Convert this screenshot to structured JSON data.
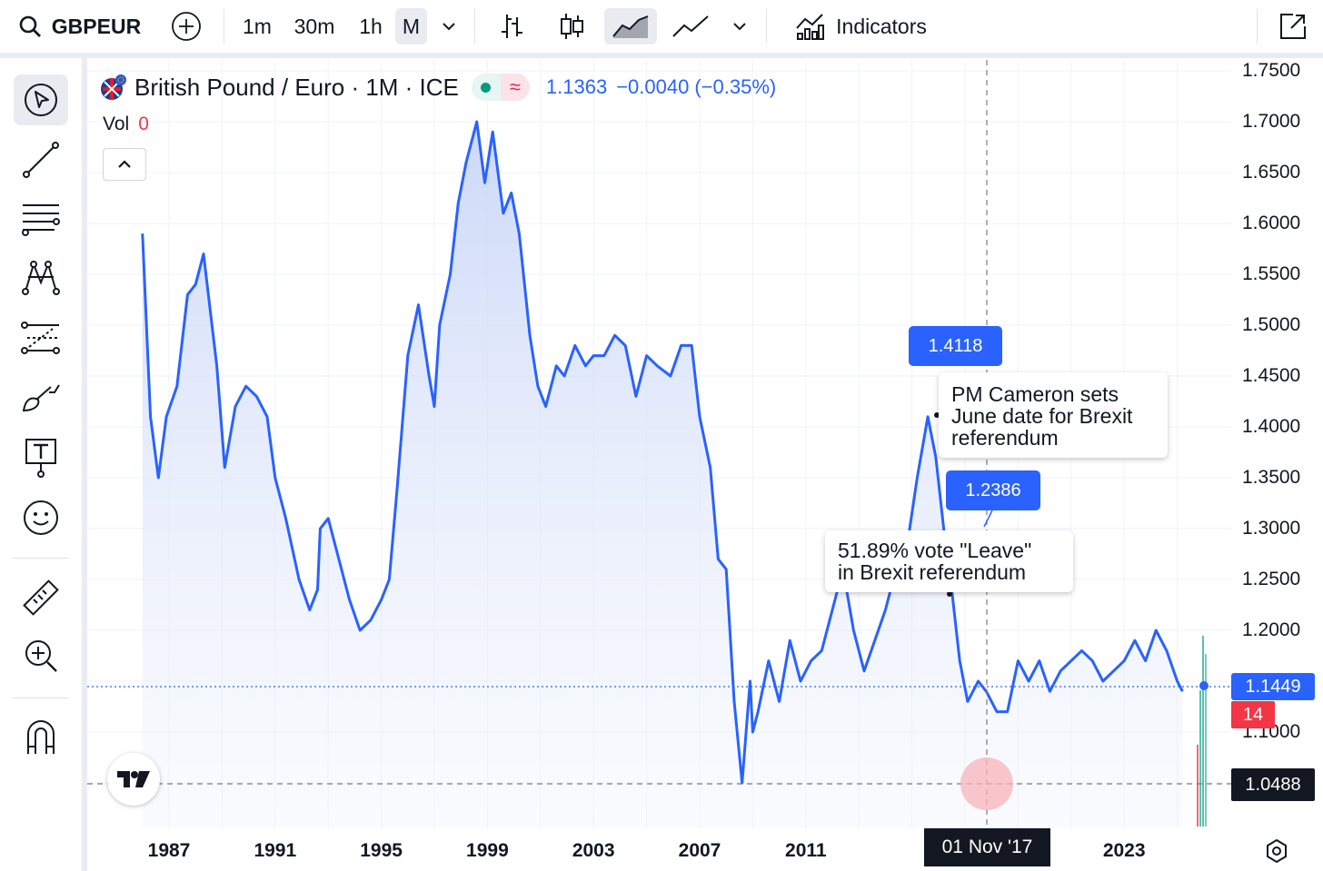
{
  "toolbar": {
    "symbol": "GBPEUR",
    "intervals": [
      "1m",
      "30m",
      "1h",
      "M"
    ],
    "active_interval": "M",
    "indicators_label": "Indicators",
    "icons": [
      "search-icon",
      "add-symbol-icon",
      "chevron-down-icon",
      "bars-icon",
      "candles-icon",
      "area-icon",
      "line-icon",
      "chevron-down-icon",
      "indicators-icon",
      "fullscreen-icon"
    ]
  },
  "left_toolbar": {
    "icons": [
      "cursor-icon",
      "trend-line-icon",
      "fib-icon",
      "pattern-icon",
      "projection-icon",
      "brush-icon",
      "text-icon",
      "emoji-icon",
      "ruler-icon",
      "zoom-in-icon",
      "magnet-icon"
    ]
  },
  "legend": {
    "title": "British Pound / Euro · 1M · ICE",
    "last": "1.1363",
    "change": "−0.0040",
    "change_pct": "(−0.35%)",
    "vol_label": "Vol",
    "vol_value": "0"
  },
  "price_tags": {
    "last_price": "1.1449",
    "countdown": "14",
    "crosshair_price": "1.0488",
    "crosshair_time": "01 Nov '17"
  },
  "annotations": [
    {
      "bubble": "1.4118",
      "text": [
        "PM Cameron sets",
        "June date for Brexit",
        "referendum"
      ]
    },
    {
      "bubble": "1.2386",
      "text": [
        "51.89% vote \"Leave\"",
        "in Brexit referendum"
      ]
    }
  ],
  "colors": {
    "line": "#2962ff",
    "area_top": "#c9d6f7",
    "down": "#f23645",
    "dark": "#131722"
  },
  "chart_data": {
    "type": "area",
    "title": "British Pound / Euro · 1M · ICE",
    "xlabel": "",
    "ylabel": "",
    "ylim": [
      1.03,
      1.76
    ],
    "xlim": [
      1985.5,
      2026.5
    ],
    "x_ticks": [
      "1987",
      "1991",
      "1995",
      "1999",
      "2003",
      "2007",
      "2011",
      "201",
      "2023"
    ],
    "y_ticks": [
      "1.7500",
      "1.7000",
      "1.6500",
      "1.6000",
      "1.5500",
      "1.5000",
      "1.4500",
      "1.4000",
      "1.3500",
      "1.3000",
      "1.2500",
      "1.2000",
      "1.1000"
    ],
    "grid": true,
    "series": [
      {
        "x": [
          1986.0,
          1986.3,
          1986.6,
          1986.9,
          1987.3,
          1987.7,
          1988.0,
          1988.3,
          1988.8,
          1989.1,
          1989.5,
          1989.9,
          1990.3,
          1990.7,
          1991.0,
          1991.4,
          1991.9,
          1992.3,
          1992.6,
          1992.7,
          1993.0,
          1993.4,
          1993.8,
          1994.2,
          1994.6,
          1995.0,
          1995.3,
          1995.6,
          1996.0,
          1996.4,
          1996.8,
          1997.0,
          1997.2,
          1997.6,
          1997.9,
          1998.2,
          1998.6,
          1998.9,
          1999.2,
          1999.6,
          1999.9,
          2000.2,
          2000.4,
          2000.6,
          2000.9,
          2001.2,
          2001.6,
          2001.9,
          2002.3,
          2002.7,
          2003.0,
          2003.4,
          2003.8,
          2004.2,
          2004.6,
          2005.0,
          2005.4,
          2005.9,
          2006.3,
          2006.7,
          2007.0,
          2007.4,
          2007.7,
          2008.0,
          2008.3,
          2008.6,
          2008.9,
          2009.0,
          2009.2,
          2009.6,
          2010.0,
          2010.4,
          2010.8,
          2011.2,
          2011.6,
          2012.0,
          2012.4,
          2012.8,
          2013.2,
          2013.6,
          2014.0,
          2014.4,
          2014.8,
          2015.2,
          2015.6,
          2015.9,
          2016.2,
          2016.5,
          2016.8,
          2017.1,
          2017.5,
          2017.8,
          2018.2,
          2018.6,
          2019.0,
          2019.4,
          2019.8,
          2020.2,
          2020.6,
          2021.0,
          2021.4,
          2021.8,
          2022.2,
          2022.6,
          2023.0,
          2023.4,
          2023.8,
          2024.2,
          2024.6,
          2025.0,
          2025.2
        ],
        "y": [
          1.59,
          1.41,
          1.35,
          1.41,
          1.44,
          1.53,
          1.54,
          1.57,
          1.46,
          1.36,
          1.42,
          1.44,
          1.43,
          1.41,
          1.35,
          1.31,
          1.25,
          1.22,
          1.24,
          1.3,
          1.31,
          1.27,
          1.23,
          1.2,
          1.21,
          1.23,
          1.25,
          1.34,
          1.47,
          1.52,
          1.45,
          1.42,
          1.5,
          1.55,
          1.62,
          1.66,
          1.7,
          1.64,
          1.69,
          1.61,
          1.63,
          1.59,
          1.54,
          1.49,
          1.44,
          1.42,
          1.46,
          1.45,
          1.48,
          1.46,
          1.47,
          1.47,
          1.49,
          1.48,
          1.43,
          1.47,
          1.46,
          1.45,
          1.48,
          1.48,
          1.41,
          1.36,
          1.27,
          1.26,
          1.13,
          1.05,
          1.15,
          1.1,
          1.12,
          1.17,
          1.13,
          1.19,
          1.15,
          1.17,
          1.18,
          1.22,
          1.26,
          1.2,
          1.16,
          1.19,
          1.22,
          1.26,
          1.28,
          1.35,
          1.41,
          1.37,
          1.3,
          1.24,
          1.17,
          1.13,
          1.15,
          1.14,
          1.12,
          1.12,
          1.17,
          1.15,
          1.17,
          1.14,
          1.16,
          1.17,
          1.18,
          1.17,
          1.15,
          1.16,
          1.17,
          1.19,
          1.17,
          1.2,
          1.18,
          1.15,
          1.14
        ]
      }
    ]
  }
}
